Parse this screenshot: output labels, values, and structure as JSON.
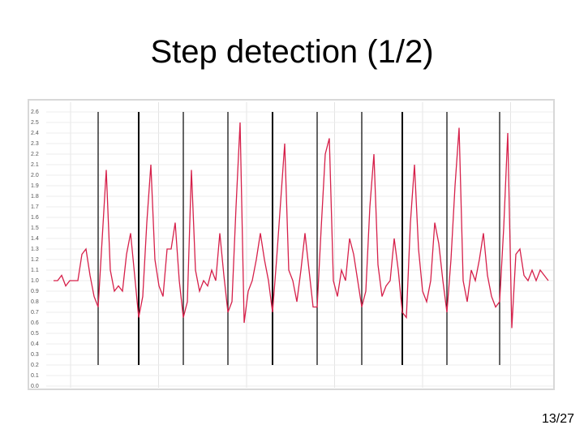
{
  "slide": {
    "title": "Step detection (1/2)",
    "page": "13/27"
  },
  "chart_data": {
    "type": "line",
    "color": "#d6204a",
    "step_color": "#000000",
    "grid": true,
    "ylim": [
      0,
      2.7
    ],
    "yticks": [
      {
        "value": 0,
        "label": "0.0"
      },
      0.1,
      0.2,
      0.3,
      0.4,
      0.5,
      0.6,
      0.7,
      0.8,
      0.9,
      {
        "value": 1,
        "label": "1.0"
      },
      1.1,
      1.2,
      1.3,
      1.4,
      1.5,
      1.6,
      1.7,
      1.8,
      1.9,
      {
        "value": 2,
        "label": "2.0"
      },
      2.1,
      2.2,
      2.3,
      2.4,
      2.5,
      2.6
    ],
    "values": [
      1.0,
      1.0,
      1.05,
      0.95,
      1.0,
      1.0,
      1.0,
      1.25,
      1.3,
      1.05,
      0.85,
      0.75,
      1.4,
      2.05,
      1.1,
      0.9,
      0.95,
      0.9,
      1.25,
      1.45,
      1.05,
      0.65,
      0.85,
      1.55,
      2.1,
      1.2,
      0.95,
      0.85,
      1.3,
      1.3,
      1.55,
      1.0,
      0.65,
      0.8,
      2.05,
      1.1,
      0.9,
      1.0,
      0.95,
      1.1,
      1.0,
      1.45,
      1.05,
      0.7,
      0.8,
      1.7,
      2.5,
      0.6,
      0.9,
      1.0,
      1.2,
      1.45,
      1.2,
      1.0,
      0.7,
      1.2,
      1.75,
      2.3,
      1.1,
      1.0,
      0.8,
      1.1,
      1.45,
      1.1,
      0.75,
      0.75,
      1.5,
      2.2,
      2.35,
      1.0,
      0.85,
      1.1,
      1.0,
      1.4,
      1.25,
      1.0,
      0.75,
      0.9,
      1.7,
      2.2,
      1.15,
      0.85,
      0.95,
      1.0,
      1.4,
      1.1,
      0.7,
      0.65,
      1.55,
      2.1,
      1.3,
      0.9,
      0.8,
      1.0,
      1.55,
      1.35,
      1.0,
      0.7,
      1.2,
      1.9,
      2.45,
      1.0,
      0.8,
      1.1,
      1.0,
      1.2,
      1.45,
      1.05,
      0.85,
      0.75,
      0.8,
      1.5,
      2.4,
      0.55,
      1.25,
      1.3,
      1.05,
      1.0,
      1.1,
      1.0,
      1.1,
      1.05,
      1.0
    ],
    "steps": [
      11,
      21,
      32,
      43,
      54,
      65,
      76,
      86,
      97,
      110
    ]
  }
}
